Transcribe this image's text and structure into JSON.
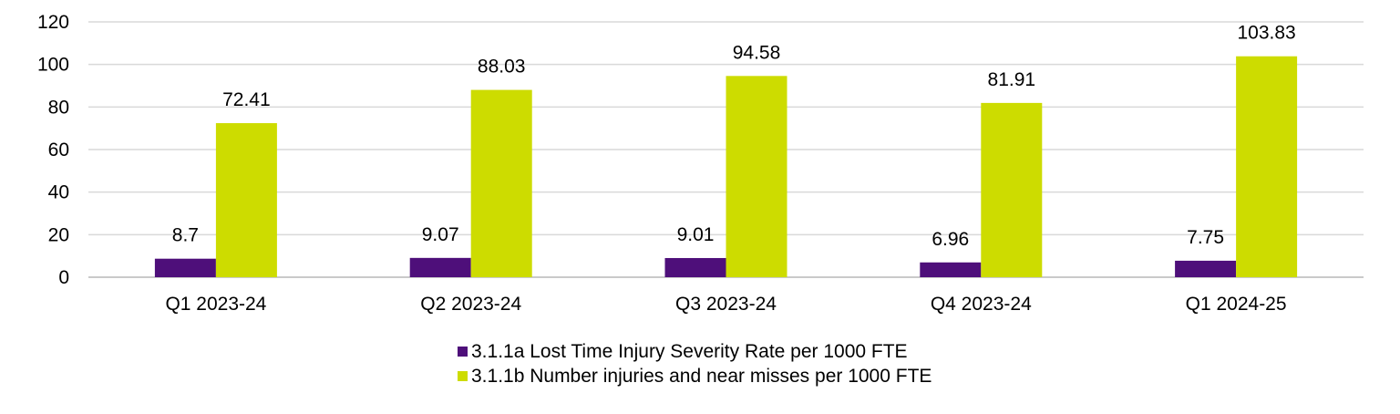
{
  "chart_data": {
    "type": "bar",
    "categories": [
      "Q1 2023-24",
      "Q2 2023-24",
      "Q3 2023-24",
      "Q4 2023-24",
      "Q1 2024-25"
    ],
    "series": [
      {
        "name": "3.1.1a Lost Time Injury Severity Rate per 1000 FTE",
        "values": [
          8.7,
          9.07,
          9.01,
          6.96,
          7.75
        ],
        "labels": [
          "8.7",
          "9.07",
          "9.01",
          "6.96",
          "7.75"
        ],
        "color": "#4e0f7a"
      },
      {
        "name": "3.1.1b Number injuries and near misses per 1000 FTE",
        "values": [
          72.41,
          88.03,
          94.58,
          81.91,
          103.83
        ],
        "labels": [
          "72.41",
          "88.03",
          "94.58",
          "81.91",
          "103.83"
        ],
        "color": "#cddc00"
      }
    ],
    "yticks": [
      "0",
      "20",
      "40",
      "60",
      "80",
      "100",
      "120"
    ],
    "ylim": [
      0,
      120
    ],
    "grid": true,
    "legend_position": "bottom"
  }
}
